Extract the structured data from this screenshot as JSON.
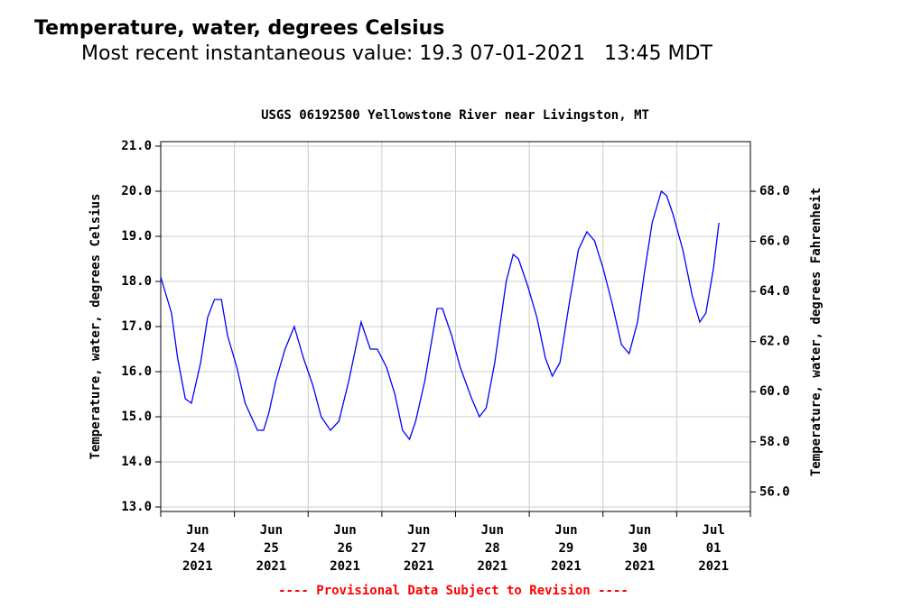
{
  "header": {
    "title": "Temperature, water, degrees Celsius",
    "subtitle": "Most recent instantaneous value: 19.3 07-01-2021   13:45 MDT"
  },
  "chart_data": {
    "type": "line",
    "title": "USGS 06192500 Yellowstone River near Livingston, MT",
    "ylabel": "Temperature, water, degrees Celsius",
    "y2label": "Temperature, water, degrees Fahrenheit",
    "note": "---- Provisional Data Subject to Revision ----",
    "grid": true,
    "xlim": [
      "2021-06-24T00:00",
      "2021-07-02T00:00"
    ],
    "xticks": [
      "2021-06-24T00:00",
      "2021-06-25T00:00",
      "2021-06-26T00:00",
      "2021-06-27T00:00",
      "2021-06-28T00:00",
      "2021-06-29T00:00",
      "2021-06-30T00:00",
      "2021-07-01T00:00",
      "2021-07-02T00:00"
    ],
    "categories": [
      [
        "Jun",
        "24",
        "2021"
      ],
      [
        "Jun",
        "25",
        "2021"
      ],
      [
        "Jun",
        "26",
        "2021"
      ],
      [
        "Jun",
        "27",
        "2021"
      ],
      [
        "Jun",
        "28",
        "2021"
      ],
      [
        "Jun",
        "29",
        "2021"
      ],
      [
        "Jun",
        "30",
        "2021"
      ],
      [
        "Jul",
        "01",
        "2021"
      ]
    ],
    "ylim": [
      12.9,
      21.1
    ],
    "yticks": [
      {
        "value": 13,
        "label": "13.0"
      },
      {
        "value": 14,
        "label": "14.0"
      },
      {
        "value": 15,
        "label": "15.0"
      },
      {
        "value": 16,
        "label": "16.0"
      },
      {
        "value": 17,
        "label": "17.0"
      },
      {
        "value": 18,
        "label": "18.0"
      },
      {
        "value": 19,
        "label": "19.0"
      },
      {
        "value": 20,
        "label": "20.0"
      },
      {
        "value": 21,
        "label": "21.0"
      }
    ],
    "y2lim": [
      55.22,
      69.98
    ],
    "y2ticks": [
      {
        "value": 56,
        "label": "56.0"
      },
      {
        "value": 58,
        "label": "58.0"
      },
      {
        "value": 60,
        "label": "60.0"
      },
      {
        "value": 62,
        "label": "62.0"
      },
      {
        "value": 64,
        "label": "64.0"
      },
      {
        "value": 66,
        "label": "66.0"
      },
      {
        "value": 68,
        "label": "68.0"
      }
    ],
    "x": [
      "2021-06-24T00:00",
      "2021-06-24T03:30",
      "2021-06-24T05:30",
      "2021-06-24T08:00",
      "2021-06-24T10:00",
      "2021-06-24T13:00",
      "2021-06-24T15:15",
      "2021-06-24T17:30",
      "2021-06-24T19:45",
      "2021-06-24T21:45",
      "2021-06-25T00:45",
      "2021-06-25T03:30",
      "2021-06-25T07:30",
      "2021-06-25T09:30",
      "2021-06-25T11:15",
      "2021-06-25T13:30",
      "2021-06-25T16:30",
      "2021-06-25T19:30",
      "2021-06-25T22:30",
      "2021-06-26T01:30",
      "2021-06-26T04:15",
      "2021-06-26T07:15",
      "2021-06-26T10:00",
      "2021-06-26T13:15",
      "2021-06-26T17:15",
      "2021-06-26T20:15",
      "2021-06-26T22:30",
      "2021-06-27T01:30",
      "2021-06-27T04:15",
      "2021-06-27T06:45",
      "2021-06-27T09:00",
      "2021-06-27T11:00",
      "2021-06-27T14:00",
      "2021-06-27T18:00",
      "2021-06-27T19:45",
      "2021-06-27T22:45",
      "2021-06-28T01:30",
      "2021-06-28T05:15",
      "2021-06-28T07:45",
      "2021-06-28T10:00",
      "2021-06-28T12:45",
      "2021-06-28T16:30",
      "2021-06-28T18:45",
      "2021-06-28T20:30",
      "2021-06-28T23:30",
      "2021-06-29T02:30",
      "2021-06-29T05:15",
      "2021-06-29T07:30",
      "2021-06-29T10:00",
      "2021-06-29T13:00",
      "2021-06-29T16:00",
      "2021-06-29T18:45",
      "2021-06-29T21:15",
      "2021-06-30T00:00",
      "2021-06-30T03:00",
      "2021-06-30T06:00",
      "2021-06-30T08:30",
      "2021-06-30T11:15",
      "2021-06-30T13:30",
      "2021-06-30T16:00",
      "2021-06-30T19:00",
      "2021-06-30T20:45",
      "2021-06-30T22:45",
      "2021-07-01T02:00",
      "2021-07-01T05:00",
      "2021-07-01T07:30",
      "2021-07-01T09:30",
      "2021-07-01T12:00",
      "2021-07-01T13:45"
    ],
    "series": [
      {
        "name": "Temperature, water",
        "color": "#0000ff",
        "values": [
          18.1,
          17.3,
          16.3,
          15.4,
          15.3,
          16.2,
          17.2,
          17.6,
          17.6,
          16.8,
          16.1,
          15.3,
          14.7,
          14.7,
          15.1,
          15.8,
          16.5,
          17.0,
          16.3,
          15.7,
          15.0,
          14.7,
          14.9,
          15.8,
          17.1,
          16.5,
          16.5,
          16.1,
          15.5,
          14.7,
          14.5,
          14.9,
          15.8,
          17.4,
          17.4,
          16.8,
          16.1,
          15.4,
          15.0,
          15.2,
          16.2,
          18.0,
          18.6,
          18.5,
          17.9,
          17.2,
          16.3,
          15.9,
          16.2,
          17.5,
          18.7,
          19.1,
          18.9,
          18.3,
          17.5,
          16.6,
          16.4,
          17.1,
          18.2,
          19.3,
          20.0,
          19.9,
          19.5,
          18.7,
          17.7,
          17.1,
          17.3,
          18.3,
          19.3
        ]
      }
    ]
  }
}
